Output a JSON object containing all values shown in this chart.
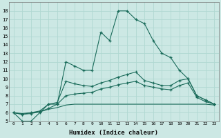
{
  "xlabel": "Humidex (Indice chaleur)",
  "background_color": "#cce8e4",
  "grid_color": "#b0d8d2",
  "line_color": "#1a6b5a",
  "xlim": [
    -0.5,
    23.5
  ],
  "ylim": [
    5,
    19
  ],
  "xticks": [
    0,
    1,
    2,
    3,
    4,
    5,
    6,
    7,
    8,
    9,
    10,
    11,
    12,
    13,
    14,
    15,
    16,
    17,
    18,
    19,
    20,
    21,
    22,
    23
  ],
  "yticks": [
    5,
    6,
    7,
    8,
    9,
    10,
    11,
    12,
    13,
    14,
    15,
    16,
    17,
    18
  ],
  "line1_x": [
    0,
    1,
    2,
    3,
    4,
    5,
    6,
    7,
    8,
    9,
    10,
    11,
    12,
    13,
    14,
    15,
    16,
    17,
    18,
    19,
    20,
    21,
    22,
    23
  ],
  "line1_y": [
    6,
    5,
    5,
    6,
    7,
    7,
    12,
    11.5,
    11,
    11,
    15.5,
    14.5,
    18,
    18,
    17,
    16.5,
    14.5,
    13,
    12.5,
    11,
    10,
    8,
    7.5,
    7
  ],
  "line2_x": [
    0,
    1,
    2,
    3,
    4,
    5,
    6,
    7,
    8,
    9,
    10,
    11,
    12,
    13,
    14,
    15,
    16,
    17,
    18,
    19,
    20,
    21,
    22,
    23
  ],
  "line2_y": [
    6,
    5.8,
    6,
    6.2,
    7,
    7.2,
    9.7,
    9.4,
    9.2,
    9.1,
    9.5,
    9.8,
    10.2,
    10.5,
    10.8,
    9.8,
    9.5,
    9.2,
    9.2,
    9.8,
    10,
    8,
    7.5,
    7
  ],
  "line3_x": [
    0,
    1,
    2,
    3,
    4,
    5,
    6,
    7,
    8,
    9,
    10,
    11,
    12,
    13,
    14,
    15,
    16,
    17,
    18,
    19,
    20,
    21,
    22,
    23
  ],
  "line3_y": [
    6,
    5.8,
    5.9,
    6.1,
    6.5,
    7,
    8,
    8.2,
    8.3,
    8.4,
    8.8,
    9.0,
    9.3,
    9.5,
    9.7,
    9.2,
    9.0,
    8.8,
    8.7,
    9.2,
    9.5,
    7.8,
    7.3,
    7.0
  ],
  "line4_x": [
    0,
    1,
    2,
    3,
    4,
    5,
    6,
    7,
    8,
    9,
    10,
    11,
    12,
    13,
    14,
    15,
    16,
    17,
    18,
    19,
    20,
    21,
    22,
    23
  ],
  "line4_y": [
    6,
    5.9,
    6.0,
    6.1,
    6.4,
    6.6,
    6.9,
    7.0,
    7.0,
    7.0,
    7.0,
    7.0,
    7.0,
    7.0,
    7.0,
    7.0,
    7.0,
    7.0,
    7.0,
    7.0,
    7.0,
    7.0,
    7.0,
    6.9
  ]
}
